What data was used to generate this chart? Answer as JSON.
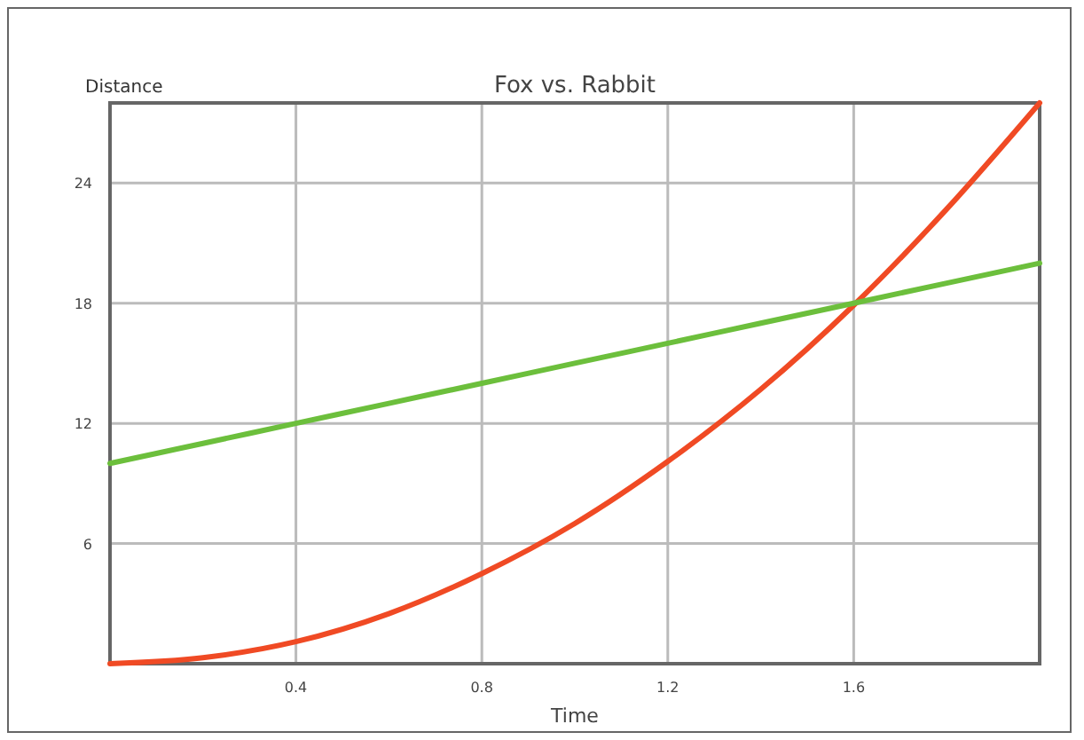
{
  "chart_data": {
    "type": "line",
    "title": "Fox vs. Rabbit",
    "xlabel": "Time",
    "ylabel": "Distance",
    "x": [
      0,
      0.2,
      0.4,
      0.6,
      0.8,
      1.0,
      1.2,
      1.4,
      1.6,
      1.8,
      2.0
    ],
    "series": [
      {
        "color": "#f04a24",
        "values": [
          0,
          0.3,
          1.1,
          2.5,
          4.5,
          7,
          10.1,
          13.7,
          17.9,
          22.7,
          28
        ]
      },
      {
        "color": "#6cbf3c",
        "values": [
          10,
          11,
          12,
          13,
          14,
          15,
          16,
          17,
          18,
          19,
          20
        ]
      }
    ],
    "xlim": [
      0,
      2
    ],
    "ylim": [
      0,
      28
    ],
    "xticks": [
      {
        "value": 0,
        "label": null
      },
      0.4,
      0.8,
      1.2,
      1.6,
      {
        "value": 2,
        "label": null
      }
    ],
    "yticks": [
      {
        "value": 0,
        "label": null
      },
      6,
      12,
      18,
      24
    ],
    "grid": true,
    "marker": "none",
    "line_style": "solid"
  }
}
